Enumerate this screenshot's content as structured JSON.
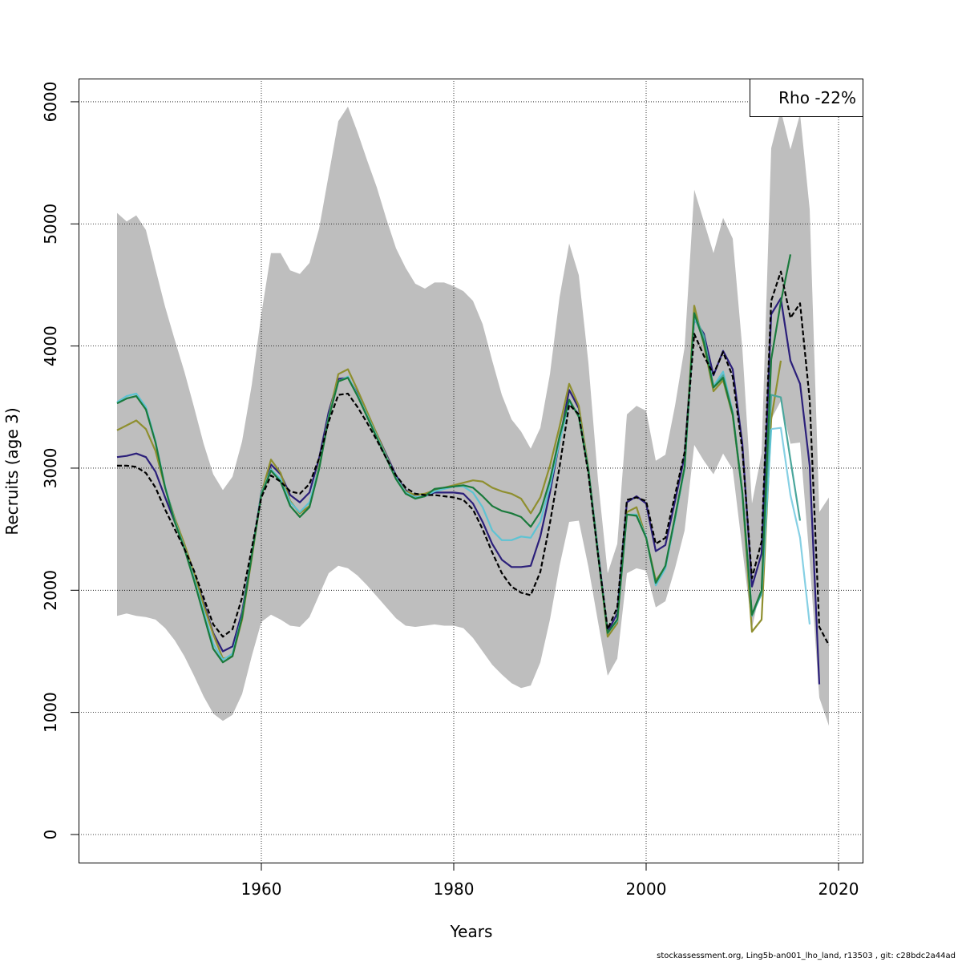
{
  "footer": "stockassessment.org, Ling5b-an001_lho_land, r13503 , git: c28bdc2a44ad",
  "chart_data": {
    "type": "line",
    "xlabel": "Years",
    "ylabel": "Recruits (age 3)",
    "xlim": [
      1941,
      2022.5
    ],
    "ylim": [
      -230,
      6190
    ],
    "xticks": [
      1960,
      1980,
      2000,
      2020
    ],
    "yticks": [
      0,
      1000,
      2000,
      3000,
      4000,
      5000,
      6000
    ],
    "grid": true,
    "legend": {
      "position": "top-right",
      "text": "Rho -22%"
    },
    "colors": {
      "band": "#bebebe",
      "reference": "#000000",
      "navy": "#2b1f7a",
      "olive": "#8f8f2f",
      "cyan": "#5ec3d3",
      "teal": "#4aa69c",
      "green": "#1a7a3c",
      "light_blue": "#86d0e4"
    },
    "band": {
      "x": [
        1945,
        1946,
        1947,
        1948,
        1949,
        1950,
        1951,
        1952,
        1953,
        1954,
        1955,
        1956,
        1957,
        1958,
        1959,
        1960,
        1961,
        1962,
        1963,
        1964,
        1965,
        1966,
        1967,
        1968,
        1969,
        1970,
        1971,
        1972,
        1973,
        1974,
        1975,
        1976,
        1977,
        1978,
        1979,
        1980,
        1981,
        1982,
        1983,
        1984,
        1985,
        1986,
        1987,
        1988,
        1989,
        1990,
        1991,
        1992,
        1993,
        1994,
        1995,
        1996,
        1997,
        1998,
        1999,
        2000,
        2001,
        2002,
        2003,
        2004,
        2005,
        2006,
        2007,
        2008,
        2009,
        2010,
        2011,
        2012,
        2013,
        2014,
        2015,
        2016,
        2017,
        2018,
        2019
      ],
      "upper": [
        5090,
        5020,
        5070,
        4950,
        4630,
        4320,
        4050,
        3790,
        3500,
        3200,
        2950,
        2820,
        2930,
        3220,
        3680,
        4260,
        4760,
        4760,
        4620,
        4590,
        4680,
        4960,
        5400,
        5840,
        5960,
        5750,
        5520,
        5300,
        5040,
        4800,
        4640,
        4510,
        4470,
        4520,
        4520,
        4490,
        4450,
        4370,
        4180,
        3880,
        3600,
        3400,
        3300,
        3160,
        3330,
        3770,
        4400,
        4840,
        4580,
        3860,
        2900,
        2140,
        2380,
        3440,
        3510,
        3470,
        3060,
        3110,
        3510,
        3990,
        5280,
        5020,
        4760,
        5050,
        4880,
        3980,
        2710,
        3120,
        5620,
        5930,
        5610,
        5900,
        5120,
        2640,
        2760
      ],
      "lower": [
        1790,
        1810,
        1790,
        1780,
        1760,
        1690,
        1590,
        1460,
        1300,
        1130,
        990,
        930,
        980,
        1150,
        1460,
        1740,
        1800,
        1760,
        1710,
        1700,
        1780,
        1960,
        2140,
        2200,
        2180,
        2120,
        2040,
        1950,
        1860,
        1770,
        1710,
        1700,
        1710,
        1720,
        1710,
        1710,
        1690,
        1610,
        1500,
        1390,
        1310,
        1240,
        1200,
        1220,
        1410,
        1760,
        2200,
        2560,
        2570,
        2190,
        1740,
        1300,
        1440,
        2140,
        2180,
        2160,
        1860,
        1910,
        2180,
        2490,
        3190,
        3060,
        2950,
        3120,
        2990,
        2340,
        1690,
        2050,
        3400,
        3550,
        3200,
        3210,
        2240,
        1120,
        890
      ]
    },
    "series": [
      {
        "color_key": "navy",
        "x": [
          1945,
          1946,
          1947,
          1948,
          1949,
          1950,
          1951,
          1952,
          1953,
          1954,
          1955,
          1956,
          1957,
          1958,
          1959,
          1960,
          1961,
          1962,
          1963,
          1964,
          1965,
          1966,
          1967,
          1968,
          1969,
          1970,
          1971,
          1972,
          1973,
          1974,
          1975,
          1976,
          1977,
          1978,
          1979,
          1980,
          1981,
          1982,
          1983,
          1984,
          1985,
          1986,
          1987,
          1988,
          1989,
          1990,
          1991,
          1992,
          1993,
          1994,
          1995,
          1996,
          1997,
          1998,
          1999,
          2000,
          2001,
          2002,
          2003,
          2004,
          2005,
          2006,
          2007,
          2008,
          2009,
          2010,
          2011,
          2012,
          2013,
          2014,
          2015,
          2016,
          2017,
          2018
        ],
        "values": [
          3090,
          3100,
          3120,
          3090,
          2970,
          2760,
          2560,
          2360,
          2140,
          1900,
          1650,
          1500,
          1540,
          1820,
          2290,
          2800,
          3030,
          2950,
          2780,
          2720,
          2800,
          3080,
          3460,
          3730,
          3740,
          3610,
          3450,
          3280,
          3110,
          2940,
          2820,
          2760,
          2770,
          2800,
          2800,
          2800,
          2790,
          2710,
          2560,
          2380,
          2250,
          2190,
          2190,
          2200,
          2440,
          2800,
          3220,
          3640,
          3490,
          2990,
          2320,
          1660,
          1810,
          2720,
          2770,
          2710,
          2320,
          2370,
          2730,
          3100,
          4220,
          4100,
          3760,
          3960,
          3810,
          3200,
          2030,
          2300,
          4260,
          4390,
          3880,
          3690,
          3020,
          1230
        ]
      },
      {
        "color_key": "olive",
        "x": [
          1945,
          1946,
          1947,
          1948,
          1949,
          1950,
          1951,
          1952,
          1953,
          1954,
          1955,
          1956,
          1957,
          1958,
          1959,
          1960,
          1961,
          1962,
          1963,
          1964,
          1965,
          1966,
          1967,
          1968,
          1969,
          1970,
          1971,
          1972,
          1973,
          1974,
          1975,
          1976,
          1977,
          1978,
          1979,
          1980,
          1981,
          1982,
          1983,
          1984,
          1985,
          1986,
          1987,
          1988,
          1989,
          1990,
          1991,
          1992,
          1993,
          1994,
          1995,
          1996,
          1997,
          1998,
          1999,
          2000,
          2001,
          2002,
          2003,
          2004,
          2005,
          2006,
          2007,
          2008,
          2009,
          2010,
          2011,
          2012,
          2013,
          2014
        ],
        "values": [
          3310,
          3350,
          3390,
          3320,
          3140,
          2840,
          2590,
          2380,
          2140,
          1880,
          1640,
          1440,
          1460,
          1760,
          2260,
          2790,
          3070,
          2960,
          2730,
          2630,
          2690,
          3020,
          3420,
          3770,
          3810,
          3640,
          3460,
          3280,
          3100,
          2920,
          2810,
          2780,
          2790,
          2820,
          2840,
          2860,
          2880,
          2900,
          2890,
          2840,
          2810,
          2790,
          2750,
          2630,
          2760,
          3020,
          3340,
          3690,
          3510,
          3000,
          2310,
          1620,
          1730,
          2640,
          2680,
          2430,
          2080,
          2190,
          2580,
          3000,
          4330,
          4010,
          3630,
          3720,
          3430,
          2790,
          1660,
          1760,
          3400,
          3880
        ]
      },
      {
        "color_key": "cyan",
        "x": [
          1945,
          1946,
          1947,
          1948,
          1949,
          1950,
          1951,
          1952,
          1953,
          1954,
          1955,
          1956,
          1957,
          1958,
          1959,
          1960,
          1961,
          1962,
          1963,
          1964,
          1965,
          1966,
          1967,
          1968,
          1969,
          1970,
          1971,
          1972,
          1973,
          1974,
          1975,
          1976,
          1977,
          1978,
          1979,
          1980,
          1981,
          1982,
          1983,
          1984,
          1985,
          1986,
          1987,
          1988,
          1989,
          1990,
          1991,
          1992,
          1993,
          1994,
          1995,
          1996,
          1997,
          1998,
          1999,
          2000,
          2001,
          2002,
          2003,
          2004,
          2005,
          2006,
          2007,
          2008,
          2009,
          2010,
          2011,
          2012,
          2013
        ],
        "values": [
          3540,
          3590,
          3610,
          3500,
          3220,
          2850,
          2570,
          2350,
          2100,
          1830,
          1560,
          1430,
          1480,
          1790,
          2290,
          2790,
          2990,
          2910,
          2720,
          2640,
          2720,
          3000,
          3420,
          3710,
          3750,
          3600,
          3430,
          3260,
          3090,
          2920,
          2800,
          2760,
          2770,
          2810,
          2830,
          2850,
          2850,
          2800,
          2680,
          2490,
          2410,
          2410,
          2440,
          2430,
          2560,
          2850,
          3220,
          3540,
          3440,
          2990,
          2310,
          1650,
          1750,
          2620,
          2620,
          2440,
          2040,
          2180,
          2580,
          3000,
          4230,
          4070,
          3670,
          3790,
          3460,
          2790,
          1800,
          1970,
          3320
        ]
      },
      {
        "color_key": "teal",
        "x": [
          2005,
          2006,
          2007,
          2008,
          2009,
          2010,
          2011,
          2012,
          2013,
          2014,
          2015,
          2016
        ],
        "values": [
          4260,
          4080,
          3660,
          3760,
          3450,
          2800,
          1790,
          1980,
          3600,
          3580,
          3070,
          2570
        ]
      },
      {
        "color_key": "light_blue",
        "x": [
          2013,
          2014,
          2015,
          2016,
          2017
        ],
        "values": [
          3320,
          3330,
          2780,
          2430,
          1720
        ]
      },
      {
        "color_key": "green",
        "x": [
          1945,
          1946,
          1947,
          1948,
          1949,
          1950,
          1951,
          1952,
          1953,
          1954,
          1955,
          1956,
          1957,
          1958,
          1959,
          1960,
          1961,
          1962,
          1963,
          1964,
          1965,
          1966,
          1967,
          1968,
          1969,
          1970,
          1971,
          1972,
          1973,
          1974,
          1975,
          1976,
          1977,
          1978,
          1979,
          1980,
          1981,
          1982,
          1983,
          1984,
          1985,
          1986,
          1987,
          1988,
          1989,
          1990,
          1991,
          1992,
          1993,
          1994,
          1995,
          1996,
          1997,
          1998,
          1999,
          2000,
          2001,
          2002,
          2003,
          2004,
          2005,
          2006,
          2007,
          2008,
          2009,
          2010,
          2011,
          2012,
          2013,
          2014,
          2015
        ],
        "values": [
          3530,
          3570,
          3590,
          3480,
          3210,
          2840,
          2560,
          2340,
          2080,
          1800,
          1520,
          1410,
          1460,
          1780,
          2280,
          2780,
          2980,
          2890,
          2690,
          2600,
          2680,
          2990,
          3410,
          3710,
          3740,
          3590,
          3420,
          3250,
          3080,
          2910,
          2790,
          2750,
          2770,
          2830,
          2840,
          2850,
          2860,
          2840,
          2770,
          2690,
          2650,
          2630,
          2600,
          2520,
          2640,
          2900,
          3260,
          3560,
          3420,
          2980,
          2290,
          1650,
          1760,
          2620,
          2610,
          2430,
          2060,
          2200,
          2600,
          3010,
          4270,
          4030,
          3660,
          3740,
          3440,
          2800,
          1800,
          2000,
          3890,
          4360,
          4750
        ]
      }
    ],
    "reference": {
      "color_key": "reference",
      "x": [
        1945,
        1946,
        1947,
        1948,
        1949,
        1950,
        1951,
        1952,
        1953,
        1954,
        1955,
        1956,
        1957,
        1958,
        1959,
        1960,
        1961,
        1962,
        1963,
        1964,
        1965,
        1966,
        1967,
        1968,
        1969,
        1970,
        1971,
        1972,
        1973,
        1974,
        1975,
        1976,
        1977,
        1978,
        1979,
        1980,
        1981,
        1982,
        1983,
        1984,
        1985,
        1986,
        1987,
        1988,
        1989,
        1990,
        1991,
        1992,
        1993,
        1994,
        1995,
        1996,
        1997,
        1998,
        1999,
        2000,
        2001,
        2002,
        2003,
        2004,
        2005,
        2006,
        2007,
        2008,
        2009,
        2010,
        2011,
        2012,
        2013,
        2014,
        2015,
        2016,
        2017,
        2018,
        2019
      ],
      "values": [
        3020,
        3020,
        3010,
        2960,
        2840,
        2660,
        2500,
        2340,
        2160,
        1940,
        1720,
        1620,
        1680,
        1940,
        2340,
        2760,
        2940,
        2890,
        2810,
        2790,
        2870,
        3080,
        3380,
        3600,
        3610,
        3500,
        3370,
        3230,
        3080,
        2940,
        2840,
        2790,
        2780,
        2780,
        2770,
        2760,
        2740,
        2660,
        2500,
        2310,
        2140,
        2030,
        1980,
        1960,
        2150,
        2550,
        3010,
        3520,
        3440,
        2950,
        2290,
        1680,
        1860,
        2740,
        2760,
        2730,
        2380,
        2430,
        2780,
        3130,
        4100,
        3920,
        3770,
        3950,
        3750,
        3150,
        2100,
        2400,
        4370,
        4610,
        4230,
        4350,
        3560,
        1700,
        1550
      ]
    }
  }
}
